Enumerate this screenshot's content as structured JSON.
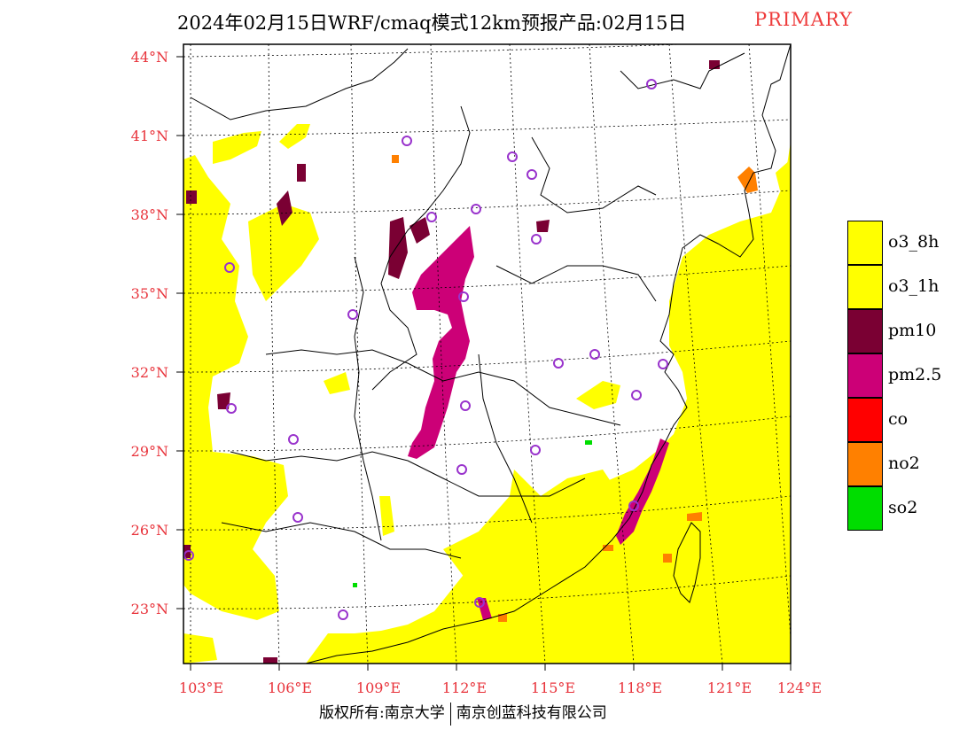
{
  "header": {
    "title": "2024年02月15日WRF/cmaq模式12km预报产品:02月15日",
    "tag": "PRIMARY"
  },
  "map": {
    "lat_labels": [
      "44°N",
      "41°N",
      "38°N",
      "35°N",
      "32°N",
      "29°N",
      "26°N",
      "23°N"
    ],
    "lon_labels": [
      "103°E",
      "106°E",
      "109°E",
      "112°E",
      "115°E",
      "118°E",
      "121°E",
      "124°E"
    ],
    "colors": {
      "o3_8h": "#ffff00",
      "o3_1h": "#ffff00",
      "pm10": "#7a0033",
      "pm2_5": "#cc0077",
      "co": "#ff0000",
      "no2": "#ff8000",
      "so2": "#00dd00",
      "station": "#9933cc",
      "label": "#e8333b"
    }
  },
  "legend": {
    "items": [
      {
        "label": "o3_8h",
        "color": "#ffff00"
      },
      {
        "label": "o3_1h",
        "color": "#ffff00"
      },
      {
        "label": "pm10",
        "color": "#7a0033"
      },
      {
        "label": "pm2.5",
        "color": "#cc0077"
      },
      {
        "label": "co",
        "color": "#ff0000"
      },
      {
        "label": "no2",
        "color": "#ff8000"
      },
      {
        "label": "so2",
        "color": "#00dd00"
      }
    ]
  },
  "footer": {
    "copyright": "版权所有:南京大学",
    "company": "南京创蓝科技有限公司"
  }
}
